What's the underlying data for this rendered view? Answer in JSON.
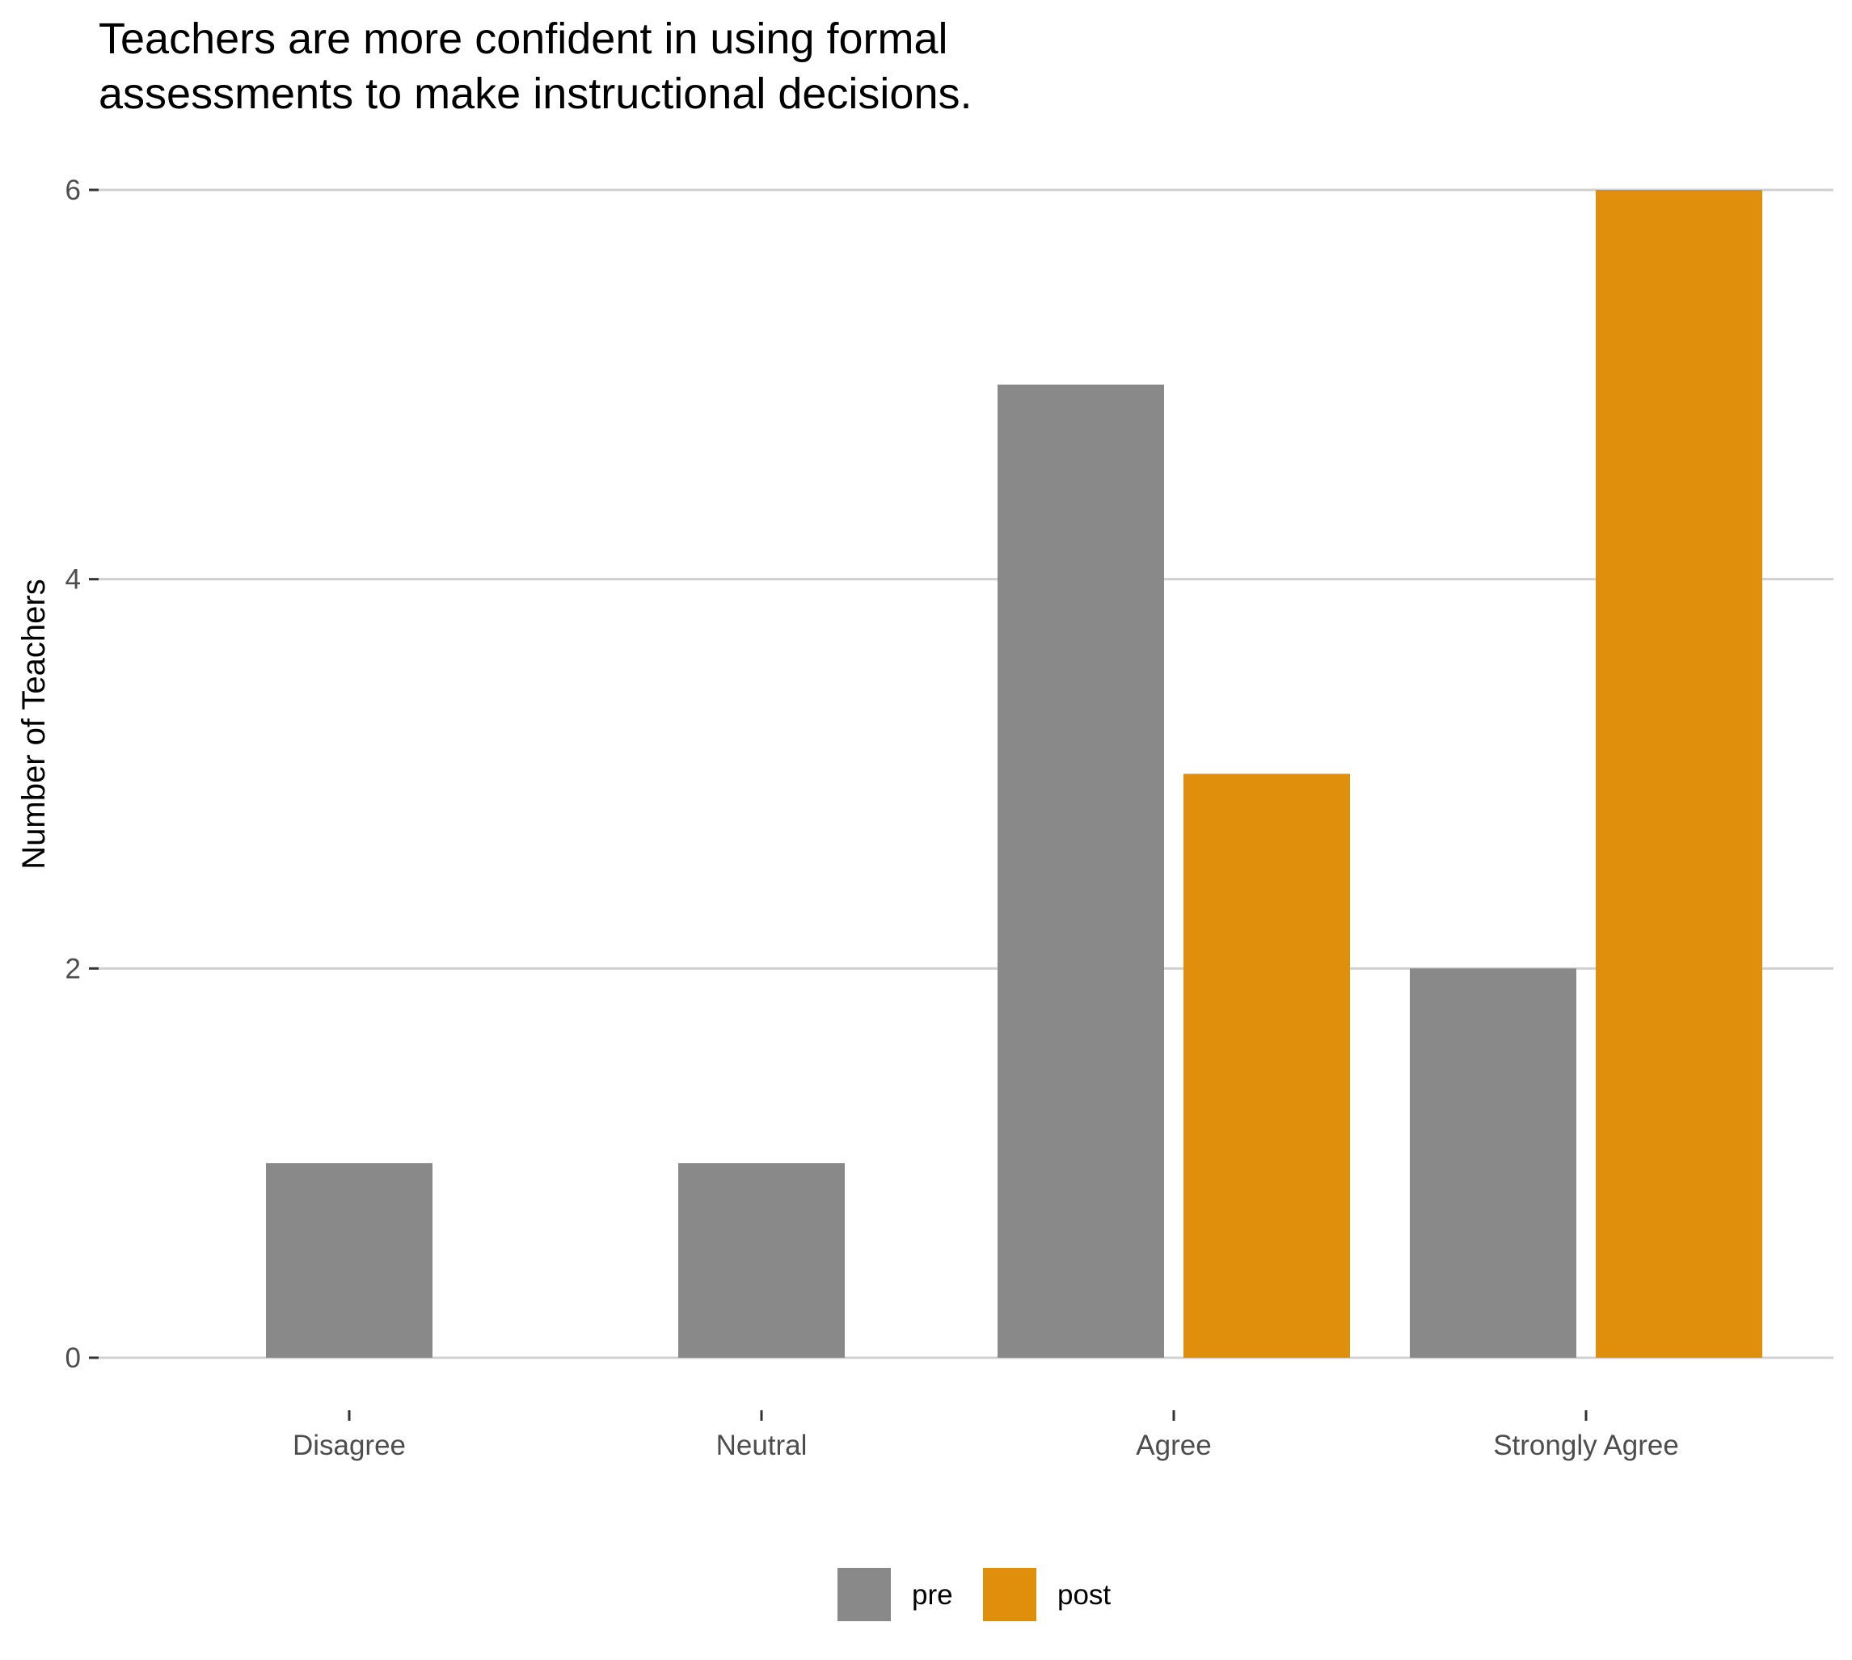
{
  "chart_data": {
    "type": "bar",
    "title_lines": [
      "Teachers are more confident in using formal",
      "assessments to make instructional decisions."
    ],
    "xlabel": "",
    "ylabel": "Number of Teachers",
    "categories": [
      "Disagree",
      "Neutral",
      "Agree",
      "Strongly Agree"
    ],
    "series": [
      {
        "name": "pre",
        "color": "#898989",
        "values": [
          1,
          1,
          5,
          2
        ]
      },
      {
        "name": "post",
        "color": "#df8f0b",
        "values": [
          0,
          0,
          3,
          6
        ]
      }
    ],
    "y_ticks": [
      "0",
      "2",
      "4",
      "6"
    ],
    "ylim": [
      0,
      6
    ],
    "grid": true,
    "legend_position": "bottom"
  }
}
